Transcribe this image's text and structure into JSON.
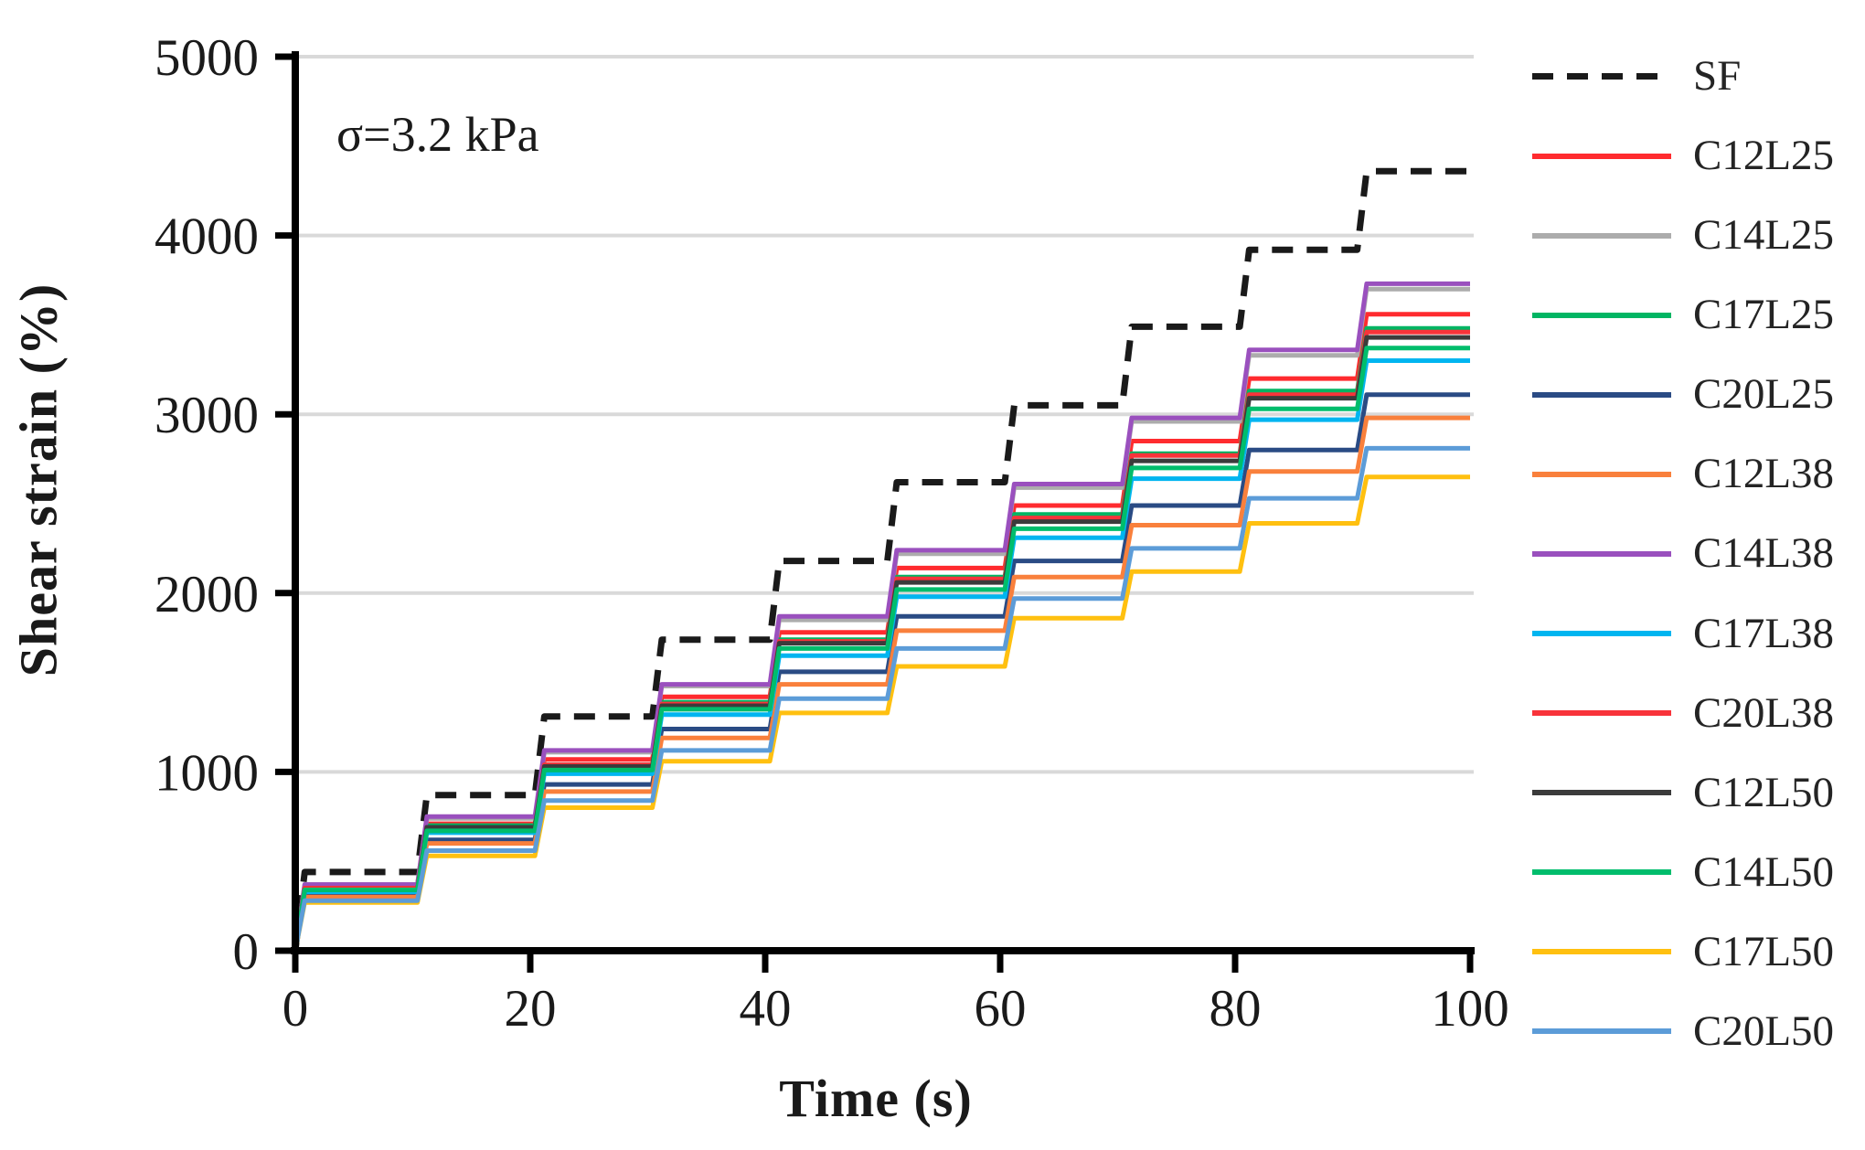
{
  "figure": {
    "annotation": "σ=3.2 kPa",
    "x_axis_label": "Time (s)",
    "y_axis_label": "Shear strain (%)"
  },
  "chart_data": {
    "type": "line",
    "subtype": "staircase-step-response",
    "title": "",
    "xlabel": "Time (s)",
    "ylabel": "Shear strain (%)",
    "xlim": [
      0,
      100
    ],
    "ylim": [
      0,
      5000
    ],
    "x_ticks": [
      0,
      20,
      40,
      60,
      80,
      100
    ],
    "y_ticks": [
      0,
      1000,
      2000,
      3000,
      4000,
      5000
    ],
    "grid": "horizontal",
    "grid_color": "#d9d9d9",
    "axis_color": "#000000",
    "legend_position": "right",
    "step_duration_s": 10,
    "steps_start_times": [
      0,
      10,
      20,
      30,
      40,
      50,
      60,
      70,
      80,
      90
    ],
    "series": [
      {
        "name": "SF",
        "color": "#1a1a1a",
        "style": "dashed",
        "step_levels": [
          440,
          870,
          1310,
          1740,
          2180,
          2620,
          3050,
          3490,
          3920,
          4360
        ]
      },
      {
        "name": "C12L25",
        "color": "#ff2b2f",
        "style": "solid",
        "step_levels": [
          360,
          710,
          1070,
          1420,
          1780,
          2140,
          2490,
          2850,
          3200,
          3560
        ]
      },
      {
        "name": "C14L25",
        "color": "#acacac",
        "style": "solid",
        "step_levels": [
          370,
          740,
          1110,
          1480,
          1850,
          2220,
          2590,
          2960,
          3330,
          3700
        ]
      },
      {
        "name": "C17L25",
        "color": "#00b563",
        "style": "solid",
        "step_levels": [
          350,
          700,
          1040,
          1390,
          1740,
          2090,
          2440,
          2780,
          3130,
          3480
        ]
      },
      {
        "name": "C20L25",
        "color": "#2a4b84",
        "style": "solid",
        "step_levels": [
          310,
          620,
          930,
          1240,
          1560,
          1870,
          2180,
          2490,
          2800,
          3110
        ]
      },
      {
        "name": "C12L38",
        "color": "#f9803c",
        "style": "solid",
        "step_levels": [
          300,
          600,
          890,
          1190,
          1490,
          1790,
          2090,
          2380,
          2680,
          2980
        ]
      },
      {
        "name": "C14L38",
        "color": "#9a50be",
        "style": "solid",
        "step_levels": [
          370,
          750,
          1120,
          1490,
          1870,
          2240,
          2610,
          2980,
          3360,
          3730
        ]
      },
      {
        "name": "C17L38",
        "color": "#00b5f0",
        "style": "solid",
        "step_levels": [
          330,
          660,
          990,
          1320,
          1650,
          1980,
          2310,
          2640,
          2970,
          3300
        ]
      },
      {
        "name": "C20L38",
        "color": "#f8333a",
        "style": "solid",
        "step_levels": [
          350,
          690,
          1040,
          1380,
          1730,
          2080,
          2420,
          2770,
          3110,
          3460
        ]
      },
      {
        "name": "C12L50",
        "color": "#3b3b3b",
        "style": "solid",
        "step_levels": [
          340,
          690,
          1030,
          1370,
          1720,
          2060,
          2400,
          2740,
          3090,
          3430
        ]
      },
      {
        "name": "C14L50",
        "color": "#00bd6c",
        "style": "solid",
        "step_levels": [
          340,
          670,
          1010,
          1350,
          1690,
          2020,
          2360,
          2700,
          3030,
          3370
        ]
      },
      {
        "name": "C17L50",
        "color": "#ffc010",
        "style": "solid",
        "step_levels": [
          270,
          530,
          800,
          1060,
          1330,
          1590,
          1860,
          2120,
          2390,
          2650
        ]
      },
      {
        "name": "C20L50",
        "color": "#5c9cd8",
        "style": "solid",
        "step_levels": [
          280,
          560,
          840,
          1120,
          1410,
          1690,
          1970,
          2250,
          2530,
          2810
        ]
      }
    ]
  }
}
